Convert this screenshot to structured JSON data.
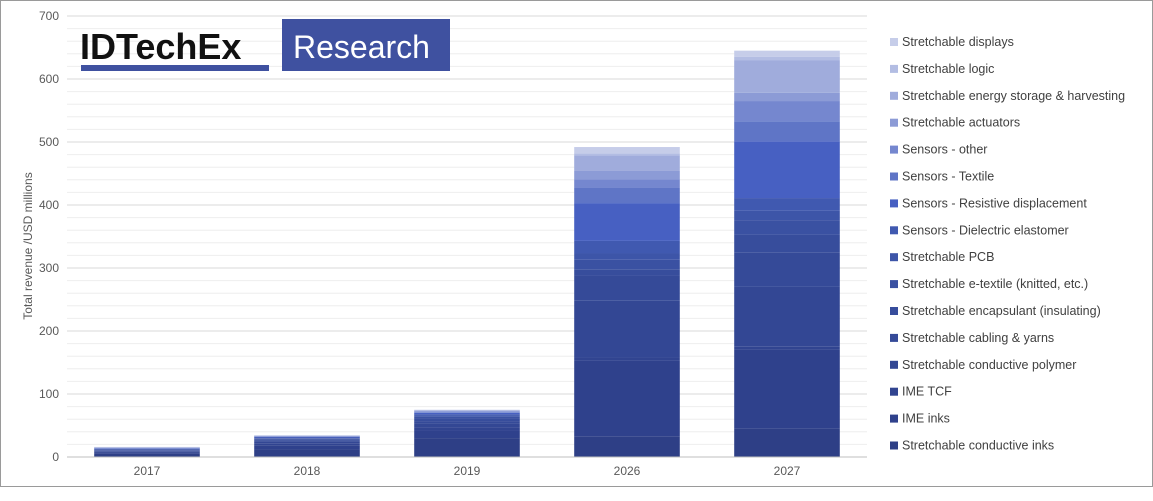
{
  "logo": {
    "brand": "IDTechEx",
    "tag": "Research",
    "brand_color": "#3f51a0"
  },
  "chart_data": {
    "type": "bar",
    "stacked": true,
    "categories": [
      "2017",
      "2018",
      "2019",
      "2026",
      "2027"
    ],
    "ylabel": "Total revenue  /USD millions",
    "xlabel": "",
    "title": "",
    "ylim": [
      0,
      700
    ],
    "yticks": [
      0,
      100,
      200,
      300,
      400,
      500,
      600,
      700
    ],
    "grid": true,
    "legend_position": "right",
    "series": [
      {
        "name": "Stretchable conductive inks",
        "color": "#2e3f86",
        "values": [
          5,
          12,
          30,
          33,
          45
        ]
      },
      {
        "name": "IME inks",
        "color": "#2f418c",
        "values": [
          2,
          6,
          12,
          120,
          125
        ]
      },
      {
        "name": "IME TCF",
        "color": "#314490",
        "values": [
          1,
          3,
          5,
          5,
          5
        ]
      },
      {
        "name": "Stretchable conductive polymer",
        "color": "#334794",
        "values": [
          1,
          3,
          6,
          90,
          95
        ]
      },
      {
        "name": "Stretchable cabling & yarns",
        "color": "#354a98",
        "values": [
          1,
          2,
          4,
          40,
          55
        ]
      },
      {
        "name": "Stretchable encapsulant (insulating)",
        "color": "#374d9c",
        "values": [
          1,
          2,
          4,
          10,
          28
        ]
      },
      {
        "name": "Stretchable e-textile (knitted, etc.)",
        "color": "#3a51a2",
        "values": [
          1,
          1,
          3,
          15,
          23
        ]
      },
      {
        "name": "Stretchable PCB",
        "color": "#3d55a8",
        "values": [
          0.5,
          1,
          2,
          10,
          15
        ]
      },
      {
        "name": "Sensors - Dielectric elastomer",
        "color": "#4059b0",
        "values": [
          0.5,
          1,
          2,
          20,
          20
        ]
      },
      {
        "name": "Sensors - Resistive displacement",
        "color": "#4760c2",
        "values": [
          0.5,
          1,
          2,
          60,
          90
        ]
      },
      {
        "name": "Sensors - Textile",
        "color": "#5f75c6",
        "values": [
          0.5,
          0.5,
          1,
          24,
          32
        ]
      },
      {
        "name": "Sensors - other",
        "color": "#7587cf",
        "values": [
          0.5,
          0.5,
          1,
          14,
          32
        ]
      },
      {
        "name": "Stretchable actuators",
        "color": "#8c9bd6",
        "values": [
          0.5,
          0.5,
          1,
          13,
          13
        ]
      },
      {
        "name": "Stretchable energy storage & harvesting",
        "color": "#a0acdc",
        "values": [
          0.5,
          0.5,
          1,
          25,
          52
        ]
      },
      {
        "name": "Stretchable logic",
        "color": "#b3bde3",
        "values": [
          0.2,
          0.3,
          0.5,
          3,
          5
        ]
      },
      {
        "name": "Stretchable displays",
        "color": "#c6cde9",
        "values": [
          0.3,
          0.2,
          0.5,
          10,
          10
        ]
      }
    ]
  }
}
